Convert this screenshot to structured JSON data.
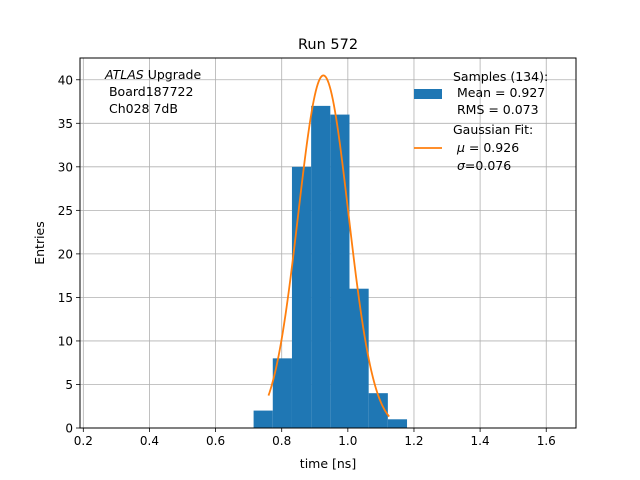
{
  "chart_data": {
    "type": "bar",
    "title": "Run 572",
    "xlabel": "time [ns]",
    "ylabel": "Entries",
    "xlim": [
      0.19,
      1.69
    ],
    "ylim": [
      0,
      42.5
    ],
    "xticks": [
      0.2,
      0.4,
      0.6,
      0.8,
      1.0,
      1.2,
      1.4,
      1.6
    ],
    "xtick_labels": [
      "0.2",
      "0.4",
      "0.6",
      "0.8",
      "1.0",
      "1.2",
      "1.4",
      "1.6"
    ],
    "yticks": [
      0,
      5,
      10,
      15,
      20,
      25,
      30,
      35,
      40
    ],
    "ytick_labels": [
      "0",
      "5",
      "10",
      "15",
      "20",
      "25",
      "30",
      "35",
      "40"
    ],
    "grid": true,
    "bin_edges": [
      0.715,
      0.773,
      0.831,
      0.889,
      0.947,
      1.005,
      1.063,
      1.121,
      1.179
    ],
    "counts": [
      2,
      8,
      30,
      37,
      36,
      16,
      4,
      1
    ],
    "histogram_color": "#1f77b4",
    "fit": {
      "type": "gaussian",
      "mu": 0.926,
      "sigma": 0.076,
      "peak": 40.5,
      "x_range": [
        0.76,
        1.125
      ],
      "color": "#ff7f0e"
    },
    "annotation": {
      "italic": "ATLAS",
      "rest": " Upgrade",
      "line2": " Board187722",
      "line3": " Ch028 7dB"
    },
    "legend": {
      "position": "upper right",
      "hist_lines": [
        "Samples (134):",
        " Mean = 0.927",
        " RMS = 0.073"
      ],
      "fit_line1": "Gaussian Fit:",
      "mu_sym": "μ",
      "mu_text": " = 0.926",
      "sigma_sym": "σ",
      "sigma_text": "=0.076"
    }
  }
}
